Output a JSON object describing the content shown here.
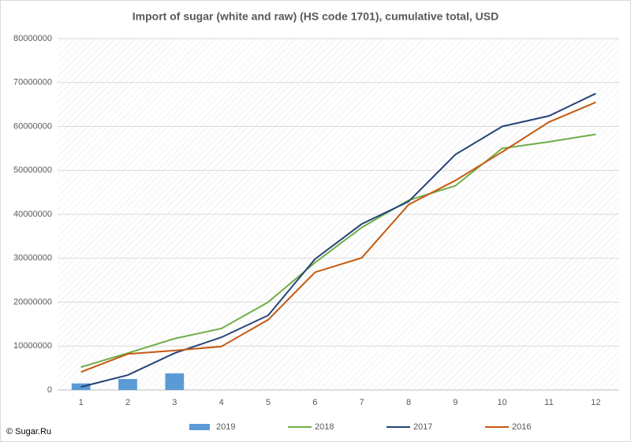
{
  "chart_data": {
    "type": "combo",
    "title": "Import of sugar (white and raw) (HS code 1701), cumulative total, USD",
    "credit": "© Sugar.Ru",
    "categories": [
      "1",
      "2",
      "3",
      "4",
      "5",
      "6",
      "7",
      "8",
      "9",
      "10",
      "11",
      "12"
    ],
    "ylim": [
      0,
      80000000
    ],
    "yticks": [
      0,
      10000000,
      20000000,
      30000000,
      40000000,
      50000000,
      60000000,
      70000000,
      80000000
    ],
    "grid": true,
    "legend": "bottom",
    "series": [
      {
        "name": "2019",
        "type": "bar",
        "color": "#5b9bd5",
        "values": [
          1500000,
          2500000,
          3800000,
          null,
          null,
          null,
          null,
          null,
          null,
          null,
          null,
          null
        ]
      },
      {
        "name": "2018",
        "type": "line",
        "color": "#70ad47",
        "values": [
          5200000,
          8400000,
          11700000,
          14000000,
          20000000,
          29000000,
          37000000,
          43200000,
          46500000,
          55000000,
          56500000,
          58200000
        ]
      },
      {
        "name": "2017",
        "type": "line",
        "color": "#264478",
        "values": [
          700000,
          3400000,
          8400000,
          12000000,
          17000000,
          29800000,
          37800000,
          42900000,
          53600000,
          60000000,
          62400000,
          67500000
        ]
      },
      {
        "name": "2016",
        "type": "line",
        "color": "#c55a11",
        "values": [
          4100000,
          8200000,
          9000000,
          9900000,
          16000000,
          26800000,
          30100000,
          42200000,
          47700000,
          54200000,
          61000000,
          65500000
        ]
      }
    ]
  }
}
